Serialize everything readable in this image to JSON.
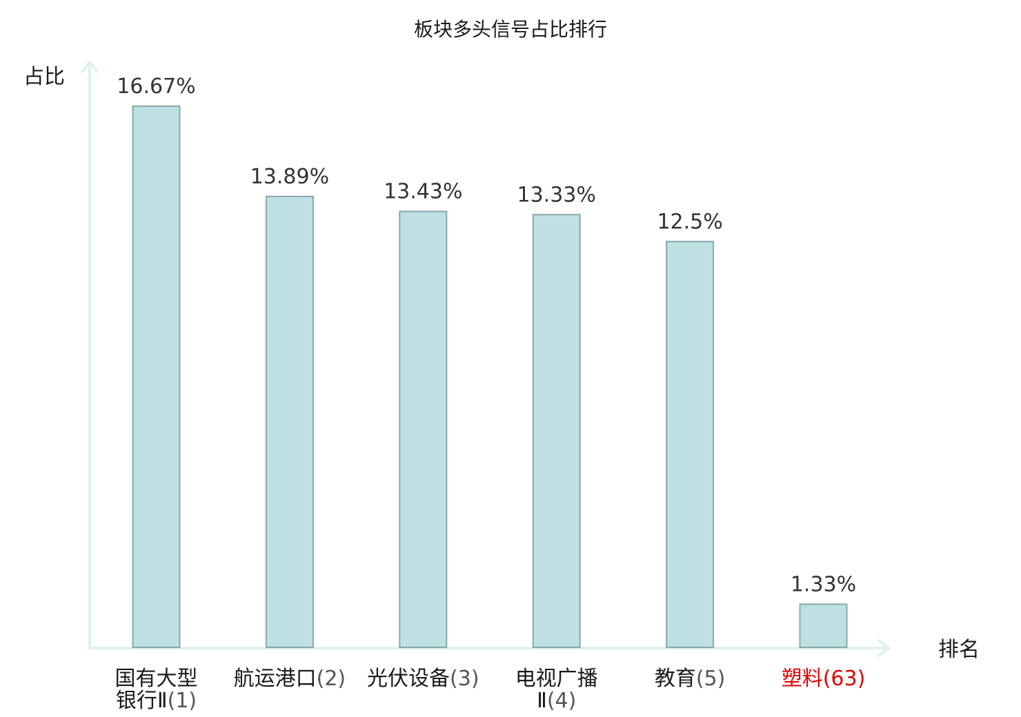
{
  "chart_data": {
    "type": "bar",
    "title": "板块多头信号占比排行",
    "ylabel": "占比",
    "xlabel": "排名",
    "ylim": [
      0,
      18
    ],
    "grid": false,
    "legend": "none",
    "categories": [
      {
        "lines": [
          "国有大型",
          "银行Ⅱ"
        ],
        "rank": "(1)",
        "highlight": false
      },
      {
        "lines": [
          "航运港口"
        ],
        "rank": "(2)",
        "highlight": false
      },
      {
        "lines": [
          "光伏设备"
        ],
        "rank": "(3)",
        "highlight": false
      },
      {
        "lines": [
          "电视广播",
          "Ⅱ"
        ],
        "rank": "(4)",
        "highlight": false
      },
      {
        "lines": [
          "教育"
        ],
        "rank": "(5)",
        "highlight": false
      },
      {
        "lines": [
          "塑料"
        ],
        "rank": "(63)",
        "highlight": true
      }
    ],
    "values": [
      16.67,
      13.89,
      13.43,
      13.33,
      12.5,
      1.33
    ],
    "value_labels": [
      "16.67%",
      "13.89%",
      "13.43%",
      "13.33%",
      "12.5%",
      "1.33%"
    ]
  },
  "colors": {
    "bar_fill": "#bde0e3",
    "bar_stroke": "#8aa7aa",
    "axis": "#dff1ef",
    "text": "#1a1a1a",
    "rank_text": "#555555",
    "highlight": "#e00000"
  }
}
